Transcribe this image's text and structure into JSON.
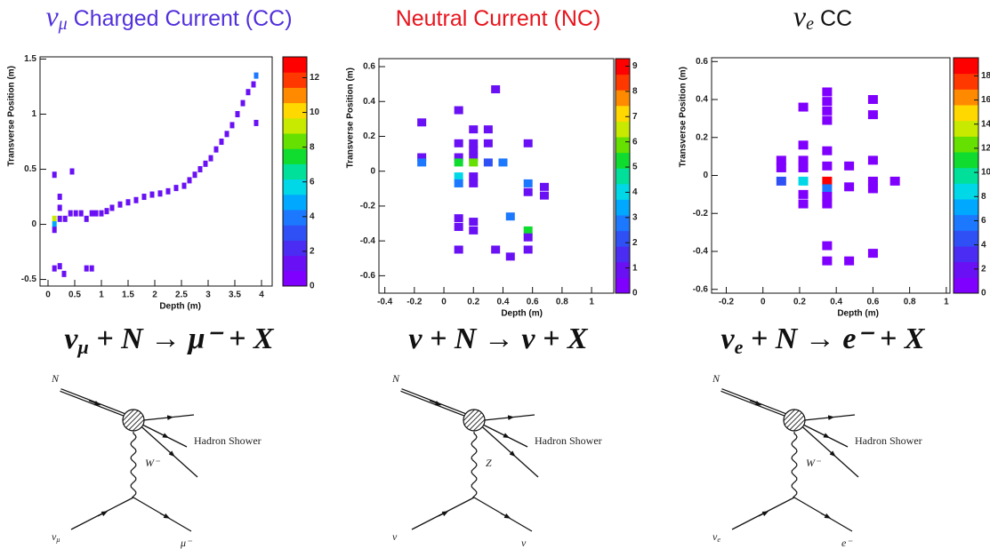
{
  "chart_data": [
    {
      "type": "heatmap",
      "title_symbol": "ν",
      "title_symbol_sub": "μ",
      "title": "Charged Current (CC)",
      "title_color": "#5230dc",
      "xlabel": "Depth (m)",
      "ylabel": "Transverse Position (m)",
      "xlim": [
        -0.15,
        4.2
      ],
      "ylim": [
        -0.56,
        1.52
      ],
      "xticks": [
        0,
        0.5,
        1,
        1.5,
        2,
        2.5,
        3,
        3.5,
        4
      ],
      "yticks": [
        -0.5,
        0,
        0.5,
        1,
        1.5
      ],
      "zlim": [
        0,
        13.2
      ],
      "zticks": [
        0,
        2,
        4,
        6,
        8,
        10,
        12
      ],
      "colorscale": [
        "#8000ff",
        "#6a10f5",
        "#4b2cf2",
        "#2f50f5",
        "#1c78ff",
        "#00a8ff",
        "#00d8e8",
        "#00e09a",
        "#10dc30",
        "#66e000",
        "#c8ea00",
        "#ffd800",
        "#ff8a00",
        "#ff3800",
        "#ff0000"
      ],
      "x": [
        0.12,
        0.12,
        0.12,
        0.12,
        0.22,
        0.22,
        0.22,
        0.32,
        0.42,
        0.45,
        0.52,
        0.62,
        0.72,
        0.82,
        0.9,
        1.0,
        1.1,
        1.2,
        1.35,
        1.5,
        1.65,
        1.8,
        1.95,
        2.1,
        2.25,
        2.4,
        2.55,
        2.65,
        2.75,
        2.85,
        2.95,
        3.05,
        3.15,
        3.25,
        3.35,
        3.45,
        3.55,
        3.65,
        3.75,
        3.85,
        3.9,
        3.9,
        0.12,
        0.22,
        0.3,
        0.72,
        0.82
      ],
      "y": [
        0.45,
        0.05,
        0.0,
        -0.05,
        0.25,
        0.15,
        0.05,
        0.05,
        0.1,
        0.48,
        0.1,
        0.1,
        0.05,
        0.1,
        0.1,
        0.1,
        0.12,
        0.15,
        0.18,
        0.2,
        0.22,
        0.25,
        0.27,
        0.28,
        0.3,
        0.33,
        0.35,
        0.4,
        0.45,
        0.5,
        0.55,
        0.6,
        0.68,
        0.75,
        0.82,
        0.9,
        1.0,
        1.1,
        1.2,
        1.27,
        1.35,
        0.92,
        -0.4,
        -0.38,
        -0.45,
        -0.4,
        -0.4
      ],
      "values": [
        1,
        9,
        5,
        1,
        1,
        1,
        1,
        1,
        1,
        1,
        1,
        1,
        1,
        1,
        1,
        1,
        1,
        1,
        1,
        1,
        1,
        1,
        1,
        1,
        1,
        1,
        1,
        1,
        1,
        1,
        1,
        1,
        1,
        1,
        1,
        1,
        1,
        1,
        1,
        1,
        4,
        1,
        1,
        1,
        1,
        1,
        1
      ],
      "equation": [
        {
          "text": "ν"
        },
        {
          "text": "μ",
          "sub": true
        },
        {
          "text": " + N → μ⁻ + X"
        }
      ],
      "diagram": {
        "incoming": "N",
        "shower": "Hadron Shower",
        "boson": "W⁻",
        "neutrino": "ν",
        "neutrino_sub": "μ",
        "lepton": "μ⁻"
      }
    },
    {
      "type": "heatmap",
      "title": "Neutral Current (NC)",
      "title_color": "#e8141c",
      "xlabel": "Depth (m)",
      "ylabel": "Transverse Position (m)",
      "xlim": [
        -0.44,
        1.15
      ],
      "ylim": [
        -0.7,
        0.646
      ],
      "xticks": [
        -0.4,
        -0.2,
        0,
        0.2,
        0.4,
        0.6,
        0.8,
        1
      ],
      "yticks": [
        -0.6,
        -0.4,
        -0.2,
        0,
        0.2,
        0.4,
        0.6
      ],
      "zlim": [
        0,
        9.3
      ],
      "zticks": [
        0,
        1,
        2,
        3,
        4,
        5,
        6,
        7,
        8,
        9
      ],
      "colorscale": [
        "#8000ff",
        "#6a10f5",
        "#4b2cf2",
        "#2f50f5",
        "#1c78ff",
        "#00a8ff",
        "#00d8e8",
        "#00e09a",
        "#10dc30",
        "#66e000",
        "#c8ea00",
        "#ffd800",
        "#ff8a00",
        "#ff3800",
        "#ff0000"
      ],
      "x": [
        -0.15,
        -0.15,
        -0.15,
        0.1,
        0.1,
        0.1,
        0.1,
        0.1,
        0.1,
        0.1,
        0.1,
        0.1,
        0.2,
        0.2,
        0.2,
        0.2,
        0.2,
        0.2,
        0.2,
        0.2,
        0.2,
        0.3,
        0.3,
        0.3,
        0.35,
        0.35,
        0.45,
        0.45,
        0.4,
        0.57,
        0.57,
        0.57,
        0.57,
        0.57,
        0.57,
        0.68,
        0.68
      ],
      "y": [
        0.28,
        0.08,
        0.05,
        0.35,
        0.16,
        0.08,
        0.05,
        -0.03,
        -0.07,
        -0.27,
        -0.32,
        -0.45,
        0.24,
        0.16,
        0.12,
        0.08,
        0.05,
        -0.03,
        -0.07,
        -0.29,
        -0.34,
        0.24,
        0.16,
        0.05,
        0.47,
        -0.45,
        -0.26,
        -0.49,
        0.05,
        0.16,
        -0.07,
        -0.12,
        -0.34,
        -0.38,
        -0.45,
        -0.09,
        -0.14
      ],
      "values": [
        1,
        1,
        3,
        1,
        1,
        1,
        5,
        4,
        3,
        1,
        1,
        1,
        1,
        1,
        1,
        1,
        6,
        1,
        1,
        1,
        1,
        1,
        1,
        2,
        1,
        1,
        3,
        1,
        3,
        1,
        3,
        1,
        5,
        1,
        1,
        1,
        1
      ],
      "equation": [
        {
          "text": "ν + N → ν + X"
        }
      ],
      "diagram": {
        "incoming": "N",
        "shower": "Hadron Shower",
        "boson": "Z",
        "neutrino": "ν",
        "lepton": "ν"
      }
    },
    {
      "type": "heatmap",
      "title_symbol": "ν",
      "title_symbol_sub": "e",
      "title": "CC",
      "title_color": "#111111",
      "xlabel": "Depth (m)",
      "ylabel": "Transverse Position (m)",
      "xlim": [
        -0.28,
        1.02
      ],
      "ylim": [
        -0.62,
        0.62
      ],
      "xticks": [
        -0.2,
        0,
        0.2,
        0.4,
        0.6,
        0.8,
        1
      ],
      "yticks": [
        -0.6,
        -0.4,
        -0.2,
        0,
        0.2,
        0.4,
        0.6
      ],
      "zlim": [
        0,
        19.5
      ],
      "zticks": [
        0,
        2,
        4,
        6,
        8,
        10,
        12,
        14,
        16,
        18
      ],
      "colorscale": [
        "#8000ff",
        "#6a10f5",
        "#4b2cf2",
        "#2f50f5",
        "#1c78ff",
        "#00a8ff",
        "#00d8e8",
        "#00e09a",
        "#10dc30",
        "#66e000",
        "#c8ea00",
        "#ffd800",
        "#ff8a00",
        "#ff3800",
        "#ff0000"
      ],
      "x": [
        0.1,
        0.1,
        0.1,
        0.22,
        0.22,
        0.22,
        0.22,
        0.22,
        0.22,
        0.22,
        0.35,
        0.35,
        0.35,
        0.35,
        0.35,
        0.35,
        0.35,
        0.35,
        0.35,
        0.35,
        0.35,
        0.35,
        0.47,
        0.47,
        0.47,
        0.6,
        0.6,
        0.6,
        0.6,
        0.6,
        0.6,
        0.72
      ],
      "y": [
        0.08,
        0.04,
        -0.03,
        0.36,
        0.16,
        0.08,
        0.04,
        -0.03,
        -0.1,
        -0.15,
        0.44,
        0.39,
        0.34,
        0.29,
        0.13,
        0.05,
        -0.03,
        -0.07,
        -0.11,
        -0.15,
        -0.37,
        -0.45,
        0.05,
        -0.06,
        -0.45,
        0.4,
        0.32,
        0.08,
        -0.03,
        -0.07,
        -0.41,
        -0.03
      ],
      "values": [
        1,
        1,
        5,
        1,
        1,
        1,
        1,
        9,
        1,
        1,
        1,
        1,
        1,
        1,
        1,
        1,
        19,
        6,
        1,
        1,
        1,
        1,
        1,
        1,
        1,
        1,
        1,
        1,
        1,
        1,
        1,
        1
      ],
      "equation": [
        {
          "text": "ν"
        },
        {
          "text": "e",
          "sub": true
        },
        {
          "text": " + N → e⁻ + X"
        }
      ],
      "diagram": {
        "incoming": "N",
        "shower": "Hadron Shower",
        "boson": "W⁻",
        "neutrino": "ν",
        "neutrino_sub": "e",
        "lepton": "e⁻"
      }
    }
  ]
}
